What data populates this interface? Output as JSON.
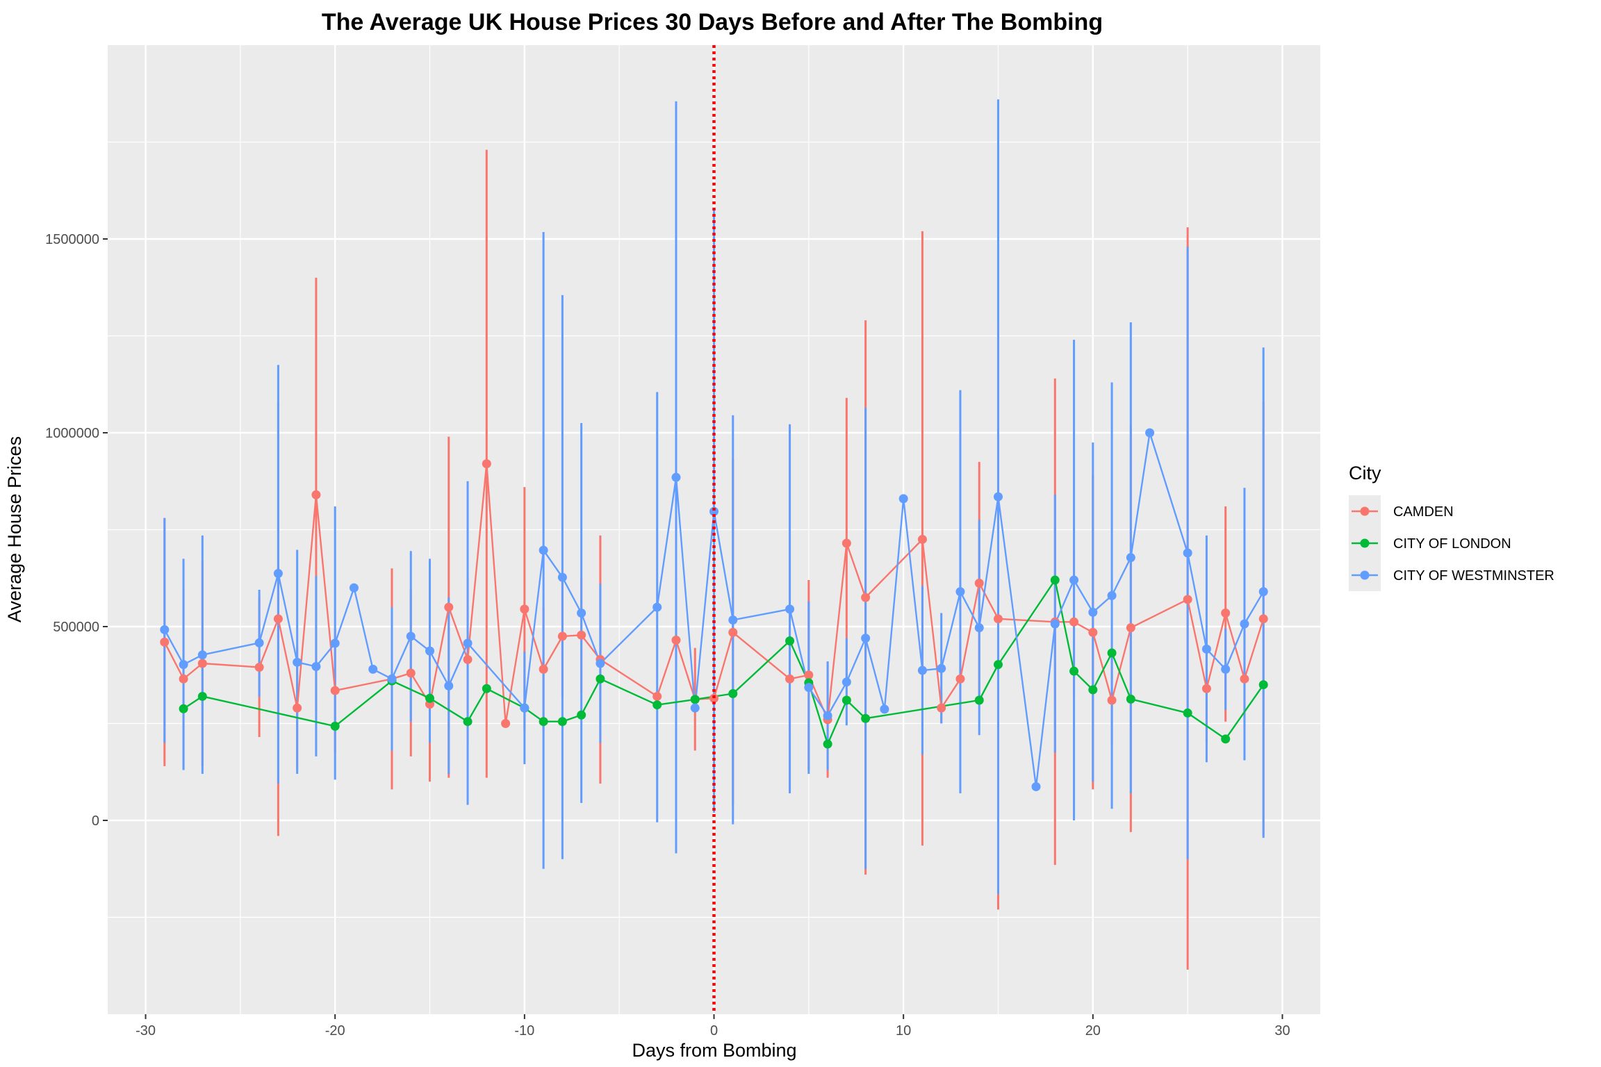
{
  "chart_data": {
    "type": "line",
    "title": "The Average UK House Prices 30 Days Before and After The Bombing",
    "xlabel": "Days from Bombing",
    "ylabel": "Average House Prices",
    "xlim": [
      -32,
      32
    ],
    "ylim": [
      -500000,
      2000000
    ],
    "x_ticks": [
      -30,
      -20,
      -10,
      0,
      10,
      20,
      30
    ],
    "y_ticks": [
      0,
      500000,
      1000000,
      1500000
    ],
    "grid": true,
    "legend": {
      "title": "City",
      "position": "right"
    },
    "reference_line": {
      "x": 0,
      "color": "#ff0000",
      "style": "dotted"
    },
    "series": [
      {
        "name": "CAMDEN",
        "color": "#f8766d",
        "points": [
          {
            "x": -29,
            "y": 460000,
            "lo": 140000,
            "hi": 780000
          },
          {
            "x": -28,
            "y": 365000,
            "lo": 135000,
            "hi": 595000
          },
          {
            "x": -27,
            "y": 405000,
            "lo": 140000,
            "hi": 670000
          },
          {
            "x": -24,
            "y": 395000,
            "lo": 215000,
            "hi": 575000
          },
          {
            "x": -23,
            "y": 520000,
            "lo": -40000,
            "hi": 1080000
          },
          {
            "x": -22,
            "y": 290000,
            "lo": 130000,
            "hi": 450000
          },
          {
            "x": -21,
            "y": 840000,
            "lo": 280000,
            "hi": 1400000
          },
          {
            "x": -20,
            "y": 335000,
            "lo": 175000,
            "hi": 495000
          },
          {
            "x": -17,
            "y": 365000,
            "lo": 80000,
            "hi": 650000
          },
          {
            "x": -16,
            "y": 380000,
            "lo": 165000,
            "hi": 595000
          },
          {
            "x": -15,
            "y": 300000,
            "lo": 100000,
            "hi": 500000
          },
          {
            "x": -14,
            "y": 550000,
            "lo": 110000,
            "hi": 990000
          },
          {
            "x": -13,
            "y": 415000,
            "lo": 200000,
            "hi": 630000
          },
          {
            "x": -12,
            "y": 920000,
            "lo": 110000,
            "hi": 1730000
          },
          {
            "x": -11,
            "y": 250000,
            "lo": 250000,
            "hi": 250000
          },
          {
            "x": -10,
            "y": 545000,
            "lo": 230000,
            "hi": 860000
          },
          {
            "x": -9,
            "y": 390000,
            "lo": 230000,
            "hi": 550000
          },
          {
            "x": -8,
            "y": 475000,
            "lo": 320000,
            "hi": 630000
          },
          {
            "x": -7,
            "y": 478000,
            "lo": 330000,
            "hi": 625000
          },
          {
            "x": -6,
            "y": 415000,
            "lo": 95000,
            "hi": 735000
          },
          {
            "x": -3,
            "y": 320000,
            "lo": 320000,
            "hi": 320000
          },
          {
            "x": -2,
            "y": 465000,
            "lo": 300000,
            "hi": 630000
          },
          {
            "x": -1,
            "y": 312000,
            "lo": 180000,
            "hi": 445000
          },
          {
            "x": 0,
            "y": 315000,
            "lo": 90000,
            "hi": 540000
          },
          {
            "x": 1,
            "y": 485000,
            "lo": 40000,
            "hi": 930000
          },
          {
            "x": 4,
            "y": 365000,
            "lo": 230000,
            "hi": 500000
          },
          {
            "x": 5,
            "y": 375000,
            "lo": 130000,
            "hi": 620000
          },
          {
            "x": 6,
            "y": 260000,
            "lo": 110000,
            "hi": 410000
          },
          {
            "x": 7,
            "y": 715000,
            "lo": 345000,
            "hi": 1090000
          },
          {
            "x": 8,
            "y": 575000,
            "lo": -140000,
            "hi": 1290000
          },
          {
            "x": 11,
            "y": 725000,
            "lo": -65000,
            "hi": 1520000
          },
          {
            "x": 12,
            "y": 290000,
            "lo": 250000,
            "hi": 330000
          },
          {
            "x": 13,
            "y": 365000,
            "lo": 270000,
            "hi": 460000
          },
          {
            "x": 14,
            "y": 612000,
            "lo": 300000,
            "hi": 925000
          },
          {
            "x": 15,
            "y": 520000,
            "lo": -230000,
            "hi": 1270000
          },
          {
            "x": 18,
            "y": 512000,
            "lo": -115000,
            "hi": 1140000
          },
          {
            "x": 19,
            "y": 512000,
            "lo": 320000,
            "hi": 700000
          },
          {
            "x": 20,
            "y": 485000,
            "lo": 80000,
            "hi": 890000
          },
          {
            "x": 21,
            "y": 310000,
            "lo": 195000,
            "hi": 425000
          },
          {
            "x": 22,
            "y": 497000,
            "lo": -30000,
            "hi": 1020000
          },
          {
            "x": 25,
            "y": 570000,
            "lo": -385000,
            "hi": 1530000
          },
          {
            "x": 26,
            "y": 340000,
            "lo": 200000,
            "hi": 480000
          },
          {
            "x": 27,
            "y": 535000,
            "lo": 255000,
            "hi": 810000
          },
          {
            "x": 28,
            "y": 365000,
            "lo": 240000,
            "hi": 490000
          },
          {
            "x": 29,
            "y": 520000,
            "lo": -40000,
            "hi": 1080000
          }
        ]
      },
      {
        "name": "CITY OF LONDON",
        "color": "#00ba38",
        "points": [
          {
            "x": -28,
            "y": 288000,
            "lo": 288000,
            "hi": 288000
          },
          {
            "x": -27,
            "y": 320000,
            "lo": 320000,
            "hi": 320000
          },
          {
            "x": -20,
            "y": 243000,
            "lo": 243000,
            "hi": 243000
          },
          {
            "x": -17,
            "y": 360000,
            "lo": 360000,
            "hi": 360000
          },
          {
            "x": -15,
            "y": 315000,
            "lo": 315000,
            "hi": 315000
          },
          {
            "x": -13,
            "y": 255000,
            "lo": 255000,
            "hi": 255000
          },
          {
            "x": -12,
            "y": 340000,
            "lo": 340000,
            "hi": 340000
          },
          {
            "x": -10,
            "y": 290000,
            "lo": 290000,
            "hi": 290000
          },
          {
            "x": -9,
            "y": 255000,
            "lo": 255000,
            "hi": 255000
          },
          {
            "x": -8,
            "y": 255000,
            "lo": 255000,
            "hi": 255000
          },
          {
            "x": -7,
            "y": 272000,
            "lo": 272000,
            "hi": 272000
          },
          {
            "x": -6,
            "y": 365000,
            "lo": 365000,
            "hi": 365000
          },
          {
            "x": -3,
            "y": 298000,
            "lo": 298000,
            "hi": 298000
          },
          {
            "x": -1,
            "y": 312000,
            "lo": 312000,
            "hi": 312000
          },
          {
            "x": 1,
            "y": 327000,
            "lo": 327000,
            "hi": 327000
          },
          {
            "x": 4,
            "y": 463000,
            "lo": 463000,
            "hi": 463000
          },
          {
            "x": 5,
            "y": 355000,
            "lo": 355000,
            "hi": 355000
          },
          {
            "x": 6,
            "y": 197000,
            "lo": 197000,
            "hi": 197000
          },
          {
            "x": 7,
            "y": 310000,
            "lo": 310000,
            "hi": 310000
          },
          {
            "x": 8,
            "y": 263000,
            "lo": 263000,
            "hi": 263000
          },
          {
            "x": 14,
            "y": 310000,
            "lo": 310000,
            "hi": 310000
          },
          {
            "x": 15,
            "y": 402000,
            "lo": 402000,
            "hi": 402000
          },
          {
            "x": 18,
            "y": 620000,
            "lo": 620000,
            "hi": 620000
          },
          {
            "x": 19,
            "y": 385000,
            "lo": 385000,
            "hi": 385000
          },
          {
            "x": 20,
            "y": 337000,
            "lo": 337000,
            "hi": 337000
          },
          {
            "x": 21,
            "y": 432000,
            "lo": 432000,
            "hi": 432000
          },
          {
            "x": 22,
            "y": 313000,
            "lo": 313000,
            "hi": 313000
          },
          {
            "x": 25,
            "y": 277000,
            "lo": 277000,
            "hi": 277000
          },
          {
            "x": 27,
            "y": 210000,
            "lo": 210000,
            "hi": 210000
          },
          {
            "x": 29,
            "y": 350000,
            "lo": 350000,
            "hi": 350000
          }
        ]
      },
      {
        "name": "CITY OF WESTMINSTER",
        "color": "#619cff",
        "points": [
          {
            "x": -29,
            "y": 492000,
            "lo": 200000,
            "hi": 780000
          },
          {
            "x": -28,
            "y": 402000,
            "lo": 130000,
            "hi": 675000
          },
          {
            "x": -27,
            "y": 427000,
            "lo": 120000,
            "hi": 735000
          },
          {
            "x": -24,
            "y": 458000,
            "lo": 320000,
            "hi": 595000
          },
          {
            "x": -23,
            "y": 637000,
            "lo": 95000,
            "hi": 1175000
          },
          {
            "x": -22,
            "y": 408000,
            "lo": 120000,
            "hi": 698000
          },
          {
            "x": -21,
            "y": 397000,
            "lo": 165000,
            "hi": 630000
          },
          {
            "x": -20,
            "y": 457000,
            "lo": 105000,
            "hi": 810000
          },
          {
            "x": -19,
            "y": 600000,
            "lo": 600000,
            "hi": 600000
          },
          {
            "x": -18,
            "y": 390000,
            "lo": 390000,
            "hi": 390000
          },
          {
            "x": -17,
            "y": 365000,
            "lo": 180000,
            "hi": 550000
          },
          {
            "x": -16,
            "y": 475000,
            "lo": 255000,
            "hi": 695000
          },
          {
            "x": -15,
            "y": 437000,
            "lo": 200000,
            "hi": 675000
          },
          {
            "x": -14,
            "y": 347000,
            "lo": 120000,
            "hi": 575000
          },
          {
            "x": -13,
            "y": 457000,
            "lo": 40000,
            "hi": 875000
          },
          {
            "x": -10,
            "y": 290000,
            "lo": 145000,
            "hi": 435000
          },
          {
            "x": -9,
            "y": 697000,
            "lo": -125000,
            "hi": 1518000
          },
          {
            "x": -8,
            "y": 627000,
            "lo": -100000,
            "hi": 1355000
          },
          {
            "x": -7,
            "y": 535000,
            "lo": 45000,
            "hi": 1025000
          },
          {
            "x": -6,
            "y": 405000,
            "lo": 200000,
            "hi": 610000
          },
          {
            "x": -3,
            "y": 550000,
            "lo": -5000,
            "hi": 1105000
          },
          {
            "x": -2,
            "y": 885000,
            "lo": -85000,
            "hi": 1855000
          },
          {
            "x": -1,
            "y": 290000,
            "lo": 290000,
            "hi": 290000
          },
          {
            "x": 0,
            "y": 797000,
            "lo": 20000,
            "hi": 1575000
          },
          {
            "x": 1,
            "y": 517000,
            "lo": -10000,
            "hi": 1045000
          },
          {
            "x": 4,
            "y": 545000,
            "lo": 70000,
            "hi": 1022000
          },
          {
            "x": 5,
            "y": 343000,
            "lo": 120000,
            "hi": 565000
          },
          {
            "x": 6,
            "y": 270000,
            "lo": 130000,
            "hi": 410000
          },
          {
            "x": 7,
            "y": 357000,
            "lo": 245000,
            "hi": 470000
          },
          {
            "x": 8,
            "y": 470000,
            "lo": -125000,
            "hi": 1065000
          },
          {
            "x": 9,
            "y": 287000,
            "lo": 287000,
            "hi": 287000
          },
          {
            "x": 10,
            "y": 830000,
            "lo": 830000,
            "hi": 830000
          },
          {
            "x": 11,
            "y": 387000,
            "lo": 170000,
            "hi": 605000
          },
          {
            "x": 12,
            "y": 392000,
            "lo": 250000,
            "hi": 535000
          },
          {
            "x": 13,
            "y": 590000,
            "lo": 70000,
            "hi": 1110000
          },
          {
            "x": 14,
            "y": 497000,
            "lo": 220000,
            "hi": 775000
          },
          {
            "x": 15,
            "y": 835000,
            "lo": -190000,
            "hi": 1860000
          },
          {
            "x": 17,
            "y": 87000,
            "lo": 87000,
            "hi": 87000
          },
          {
            "x": 18,
            "y": 507000,
            "lo": 175000,
            "hi": 840000
          },
          {
            "x": 19,
            "y": 620000,
            "lo": 0,
            "hi": 1240000
          },
          {
            "x": 20,
            "y": 537000,
            "lo": 100000,
            "hi": 975000
          },
          {
            "x": 21,
            "y": 580000,
            "lo": 30000,
            "hi": 1130000
          },
          {
            "x": 22,
            "y": 678000,
            "lo": 70000,
            "hi": 1285000
          },
          {
            "x": 23,
            "y": 1000000,
            "lo": 1000000,
            "hi": 1000000
          },
          {
            "x": 25,
            "y": 690000,
            "lo": -100000,
            "hi": 1480000
          },
          {
            "x": 26,
            "y": 442000,
            "lo": 150000,
            "hi": 735000
          },
          {
            "x": 27,
            "y": 390000,
            "lo": 285000,
            "hi": 495000
          },
          {
            "x": 28,
            "y": 507000,
            "lo": 155000,
            "hi": 858000
          },
          {
            "x": 29,
            "y": 590000,
            "lo": -45000,
            "hi": 1220000
          }
        ]
      }
    ]
  }
}
